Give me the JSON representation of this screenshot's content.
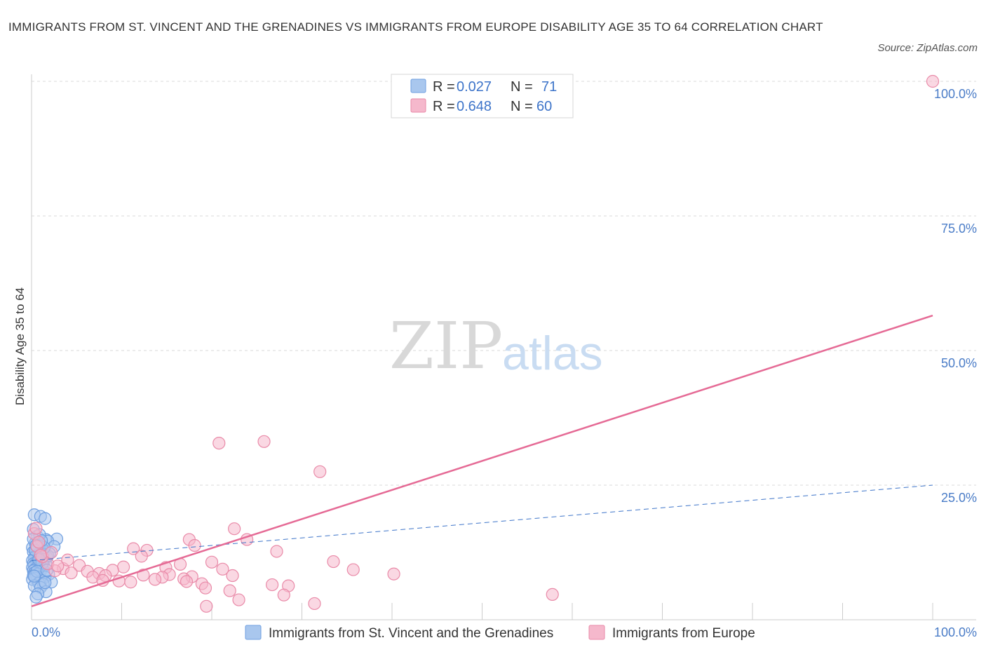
{
  "title": "IMMIGRANTS FROM ST. VINCENT AND THE GRENADINES VS IMMIGRANTS FROM EUROPE DISABILITY AGE 35 TO 64 CORRELATION CHART",
  "source": "Source: ZipAtlas.com",
  "watermark": {
    "zip": "ZIP",
    "atlas": "atlas"
  },
  "colors": {
    "blue_fill": "#a9c7ee",
    "blue_stroke": "#6f9fe0",
    "blue_line": "#3d74c9",
    "pink_fill": "#f5b8cc",
    "pink_stroke": "#e98aa8",
    "pink_line": "#e56a95",
    "grid": "#d9d9d9",
    "tick_text": "#4a7cc7"
  },
  "legend": {
    "rows": [
      {
        "r_label": "R =",
        "r_value": "0.027",
        "n_label": "N =",
        "n_value": "71"
      },
      {
        "r_label": "R =",
        "r_value": "0.648",
        "n_label": "N =",
        "n_value": "60"
      }
    ]
  },
  "chart_data": {
    "type": "scatter",
    "xlabel": "",
    "ylabel": "Disability Age 35 to 64",
    "xlim": [
      0,
      105
    ],
    "ylim": [
      0,
      100
    ],
    "x_tick_labels": {
      "min": "0.0%",
      "max": "100.0%"
    },
    "y_ticks": [
      {
        "value": 25,
        "label": "25.0%"
      },
      {
        "value": 50,
        "label": "50.0%"
      },
      {
        "value": 75,
        "label": "75.0%"
      },
      {
        "value": 100,
        "label": "100.0%"
      }
    ],
    "series": [
      {
        "name": "Immigrants from St. Vincent and the Grenadines",
        "color_key": "blue",
        "trend": {
          "x0": 0,
          "y0": 11,
          "x1": 100,
          "y1": 25,
          "style": "dashed"
        },
        "points": [
          [
            0.3,
            19.5
          ],
          [
            1.0,
            19.2
          ],
          [
            1.5,
            18.8
          ],
          [
            0.2,
            16.8
          ],
          [
            0.6,
            15.5
          ],
          [
            2.8,
            15.0
          ],
          [
            1.6,
            14.9
          ],
          [
            1.8,
            14.6
          ],
          [
            0.4,
            14.2
          ],
          [
            1.0,
            14.0
          ],
          [
            0.8,
            13.9
          ],
          [
            2.5,
            13.6
          ],
          [
            0.1,
            13.4
          ],
          [
            1.2,
            13.1
          ],
          [
            0.5,
            12.8
          ],
          [
            0.2,
            12.6
          ],
          [
            0.9,
            12.4
          ],
          [
            1.3,
            12.2
          ],
          [
            0.6,
            12.0
          ],
          [
            0.4,
            11.8
          ],
          [
            1.7,
            11.6
          ],
          [
            0.3,
            11.5
          ],
          [
            1.1,
            11.3
          ],
          [
            0.7,
            11.1
          ],
          [
            0.1,
            11.0
          ],
          [
            1.4,
            10.9
          ],
          [
            0.9,
            10.7
          ],
          [
            0.5,
            10.6
          ],
          [
            0.2,
            10.4
          ],
          [
            1.6,
            10.3
          ],
          [
            0.3,
            10.1
          ],
          [
            0.8,
            10.0
          ],
          [
            0.6,
            9.8
          ],
          [
            0.1,
            9.7
          ],
          [
            1.2,
            9.6
          ],
          [
            0.4,
            9.4
          ],
          [
            0.9,
            9.3
          ],
          [
            0.2,
            9.1
          ],
          [
            1.0,
            9.0
          ],
          [
            0.5,
            8.8
          ],
          [
            0.3,
            8.7
          ],
          [
            0.7,
            8.5
          ],
          [
            1.9,
            8.4
          ],
          [
            0.2,
            8.2
          ],
          [
            0.6,
            8.0
          ],
          [
            1.5,
            7.9
          ],
          [
            0.4,
            7.7
          ],
          [
            0.1,
            7.5
          ],
          [
            1.1,
            7.3
          ],
          [
            2.2,
            7.0
          ],
          [
            0.8,
            6.8
          ],
          [
            1.3,
            6.6
          ],
          [
            0.3,
            6.3
          ],
          [
            1.0,
            6.0
          ],
          [
            1.6,
            5.2
          ],
          [
            0.7,
            4.8
          ],
          [
            0.5,
            4.2
          ],
          [
            1.8,
            11.9
          ],
          [
            2.0,
            12.3
          ],
          [
            1.4,
            13.4
          ],
          [
            0.9,
            15.8
          ],
          [
            0.2,
            15.0
          ],
          [
            1.2,
            10.5
          ],
          [
            0.6,
            9.0
          ],
          [
            0.4,
            12.9
          ],
          [
            1.7,
            9.2
          ],
          [
            0.3,
            8.1
          ],
          [
            1.1,
            14.7
          ],
          [
            0.8,
            11.2
          ],
          [
            0.5,
            13.8
          ],
          [
            1.5,
            6.9
          ]
        ]
      },
      {
        "name": "Immigrants from Europe",
        "color_key": "pink",
        "trend": {
          "x0": 0,
          "y0": 2.5,
          "x1": 100,
          "y1": 56.5,
          "style": "solid"
        },
        "points": [
          [
            100,
            100
          ],
          [
            20.8,
            32.8
          ],
          [
            25.8,
            33.1
          ],
          [
            32.0,
            27.5
          ],
          [
            22.5,
            16.9
          ],
          [
            23.9,
            14.9
          ],
          [
            17.5,
            14.9
          ],
          [
            18.1,
            13.8
          ],
          [
            11.3,
            13.2
          ],
          [
            12.8,
            12.9
          ],
          [
            27.2,
            12.7
          ],
          [
            12.2,
            11.8
          ],
          [
            33.5,
            10.8
          ],
          [
            20.0,
            10.7
          ],
          [
            16.5,
            10.3
          ],
          [
            10.2,
            9.8
          ],
          [
            14.9,
            9.7
          ],
          [
            5.3,
            10.1
          ],
          [
            35.7,
            9.3
          ],
          [
            21.2,
            9.4
          ],
          [
            9.0,
            9.2
          ],
          [
            6.2,
            9.0
          ],
          [
            7.5,
            8.6
          ],
          [
            3.5,
            9.5
          ],
          [
            40.2,
            8.5
          ],
          [
            22.3,
            8.2
          ],
          [
            15.3,
            8.4
          ],
          [
            14.5,
            7.9
          ],
          [
            12.4,
            8.3
          ],
          [
            17.8,
            8.0
          ],
          [
            8.2,
            8.2
          ],
          [
            6.8,
            7.9
          ],
          [
            4.4,
            8.7
          ],
          [
            2.6,
            9.1
          ],
          [
            1.8,
            10.4
          ],
          [
            13.7,
            7.5
          ],
          [
            16.9,
            7.6
          ],
          [
            9.7,
            7.2
          ],
          [
            7.9,
            7.3
          ],
          [
            11.0,
            7.0
          ],
          [
            17.2,
            7.1
          ],
          [
            18.9,
            6.7
          ],
          [
            28.5,
            6.3
          ],
          [
            26.7,
            6.5
          ],
          [
            19.3,
            5.9
          ],
          [
            22.0,
            5.4
          ],
          [
            28.0,
            4.6
          ],
          [
            23.0,
            3.7
          ],
          [
            57.8,
            4.7
          ],
          [
            31.4,
            3.0
          ],
          [
            19.4,
            2.5
          ],
          [
            1.2,
            11.7
          ],
          [
            0.6,
            13.6
          ],
          [
            0.3,
            16.0
          ],
          [
            2.2,
            12.5
          ],
          [
            4.0,
            11.1
          ],
          [
            1.0,
            12.0
          ],
          [
            0.8,
            14.4
          ],
          [
            2.9,
            10.0
          ],
          [
            0.5,
            17.0
          ]
        ]
      }
    ]
  },
  "bottom_legend": [
    {
      "label": "Immigrants from St. Vincent and the Grenadines",
      "color_key": "blue"
    },
    {
      "label": "Immigrants from Europe",
      "color_key": "pink"
    }
  ]
}
